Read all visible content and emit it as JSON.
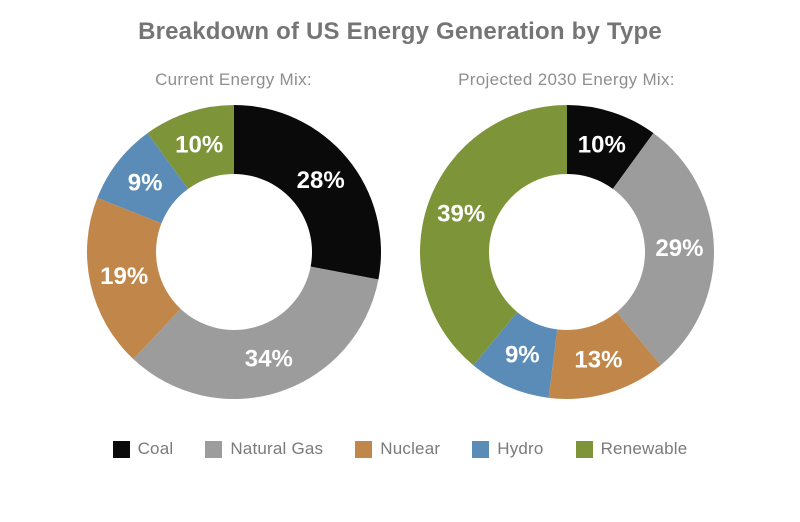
{
  "title": "Breakdown of US Energy Generation by Type",
  "legend": {
    "position": "bottom-center",
    "items": [
      {
        "label": "Coal",
        "color": "#0a0a0a"
      },
      {
        "label": "Natural Gas",
        "color": "#9c9c9c"
      },
      {
        "label": "Nuclear",
        "color": "#c1874a"
      },
      {
        "label": "Hydro",
        "color": "#5b8cb8"
      },
      {
        "label": "Renewable",
        "color": "#7e9439"
      }
    ]
  },
  "chart_data": [
    {
      "type": "pie",
      "subtype": "donut",
      "title": "Current Energy Mix:",
      "categories": [
        "Coal",
        "Natural Gas",
        "Nuclear",
        "Hydro",
        "Renewable"
      ],
      "values": [
        28,
        34,
        19,
        9,
        10
      ],
      "colors": [
        "#0a0a0a",
        "#9c9c9c",
        "#c1874a",
        "#5b8cb8",
        "#7e9439"
      ],
      "unit": "%",
      "label_format": "value-percent",
      "label_color": "#ffffff",
      "start_angle_deg": 0,
      "direction": "clockwise",
      "inner_radius_ratio": 0.53,
      "legend_position": "shared-bottom"
    },
    {
      "type": "pie",
      "subtype": "donut",
      "title": "Projected 2030 Energy Mix:",
      "categories": [
        "Coal",
        "Natural Gas",
        "Nuclear",
        "Hydro",
        "Renewable"
      ],
      "values": [
        10,
        29,
        13,
        9,
        39
      ],
      "colors": [
        "#0a0a0a",
        "#9c9c9c",
        "#c1874a",
        "#5b8cb8",
        "#7e9439"
      ],
      "unit": "%",
      "label_format": "value-percent",
      "label_color": "#ffffff",
      "start_angle_deg": 0,
      "direction": "clockwise",
      "inner_radius_ratio": 0.53,
      "legend_position": "shared-bottom"
    }
  ]
}
